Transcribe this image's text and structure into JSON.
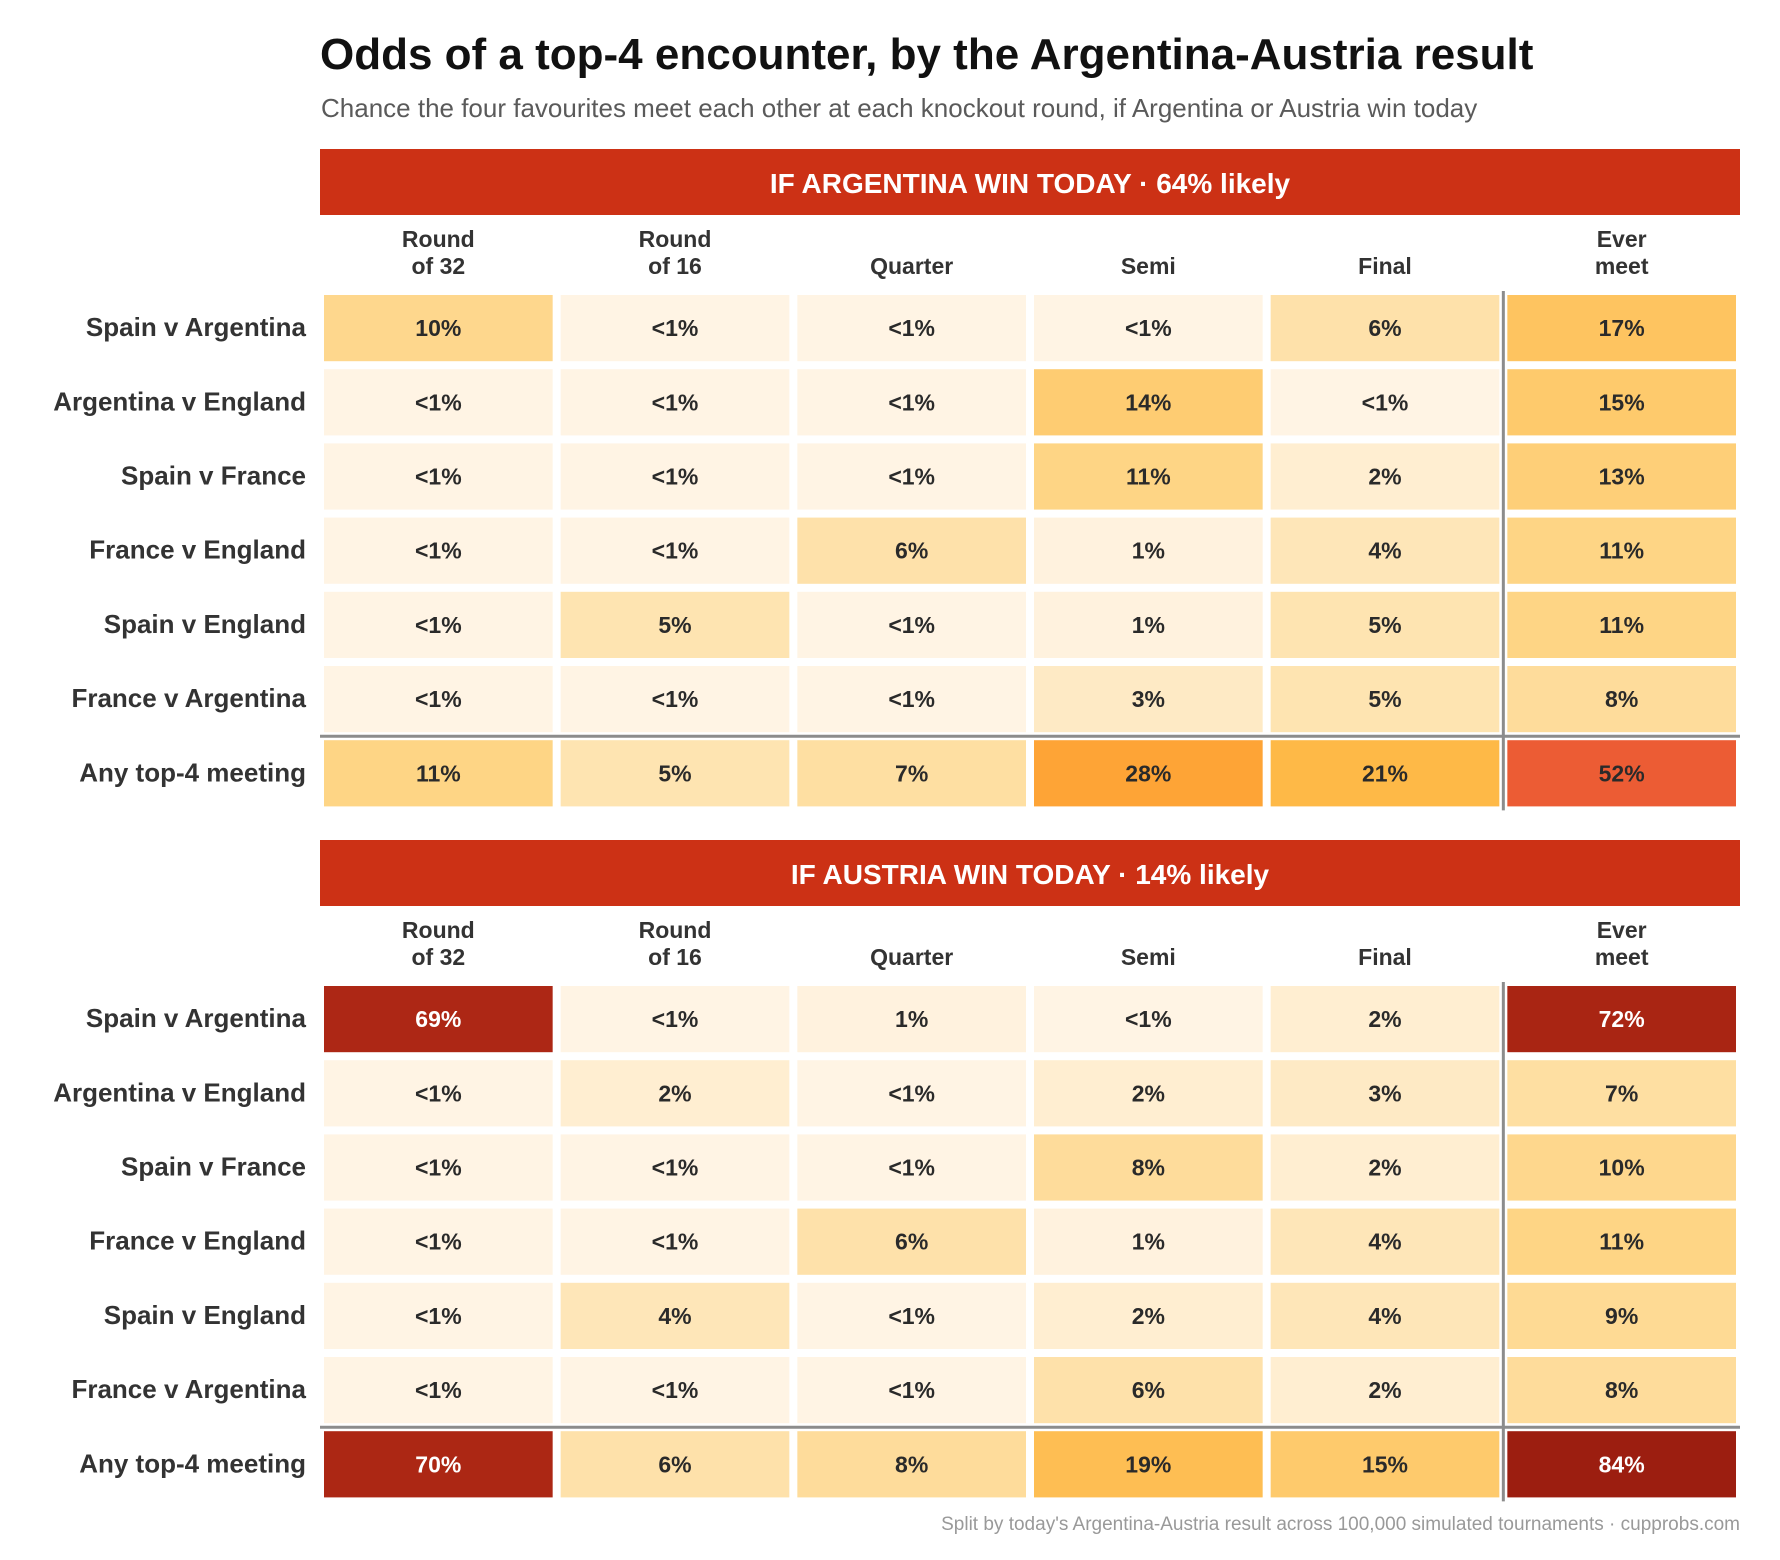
{
  "title": "Odds of a top-4 encounter, by the Argentina-Austria result",
  "subtitle": "Chance the four favourites meet each other at each knockout round, if Argentina or Austria win today",
  "footer": "Split by today's Argentina-Austria result across 100,000 simulated tournaments · cupprobs.com",
  "colors": {
    "banner": "#cc3115",
    "scale": [
      "#fff6ea",
      "#fee6b8",
      "#fed27e",
      "#feb035",
      "#fd6a3c",
      "#b22a16",
      "#9c1e10"
    ],
    "divider": "#8c8c8c"
  },
  "chart_data": [
    {
      "type": "heatmap",
      "panel_title": "IF ARGENTINA WIN TODAY  ·  64% likely",
      "columns": [
        "Round\nof 32",
        "Round\nof 16",
        "Quarter",
        "Semi",
        "Final",
        "Ever\nmeet"
      ],
      "rows": [
        "Spain v Argentina",
        "Argentina v England",
        "Spain v France",
        "France v England",
        "Spain v England",
        "France v Argentina",
        "Any top-4 meeting"
      ],
      "labels": [
        [
          "10%",
          "<1%",
          "<1%",
          "<1%",
          "6%",
          "17%"
        ],
        [
          "<1%",
          "<1%",
          "<1%",
          "14%",
          "<1%",
          "15%"
        ],
        [
          "<1%",
          "<1%",
          "<1%",
          "11%",
          "2%",
          "13%"
        ],
        [
          "<1%",
          "<1%",
          "6%",
          "1%",
          "4%",
          "11%"
        ],
        [
          "<1%",
          "5%",
          "<1%",
          "1%",
          "5%",
          "11%"
        ],
        [
          "<1%",
          "<1%",
          "<1%",
          "3%",
          "5%",
          "8%"
        ],
        [
          "11%",
          "5%",
          "7%",
          "28%",
          "21%",
          "52%"
        ]
      ],
      "values": [
        [
          10,
          0.5,
          0.5,
          0.5,
          6,
          17
        ],
        [
          0.5,
          0.5,
          0.5,
          14,
          0.5,
          15
        ],
        [
          0.5,
          0.5,
          0.5,
          11,
          2,
          13
        ],
        [
          0.5,
          0.5,
          6,
          1,
          4,
          11
        ],
        [
          0.5,
          5,
          0.5,
          1,
          5,
          11
        ],
        [
          0.5,
          0.5,
          0.5,
          3,
          5,
          8
        ],
        [
          11,
          5,
          7,
          28,
          21,
          52
        ]
      ]
    },
    {
      "type": "heatmap",
      "panel_title": "IF AUSTRIA WIN TODAY  ·  14% likely",
      "columns": [
        "Round\nof 32",
        "Round\nof 16",
        "Quarter",
        "Semi",
        "Final",
        "Ever\nmeet"
      ],
      "rows": [
        "Spain v Argentina",
        "Argentina v England",
        "Spain v France",
        "France v England",
        "Spain v England",
        "France v Argentina",
        "Any top-4 meeting"
      ],
      "labels": [
        [
          "69%",
          "<1%",
          "1%",
          "<1%",
          "2%",
          "72%"
        ],
        [
          "<1%",
          "2%",
          "<1%",
          "2%",
          "3%",
          "7%"
        ],
        [
          "<1%",
          "<1%",
          "<1%",
          "8%",
          "2%",
          "10%"
        ],
        [
          "<1%",
          "<1%",
          "6%",
          "1%",
          "4%",
          "11%"
        ],
        [
          "<1%",
          "4%",
          "<1%",
          "2%",
          "4%",
          "9%"
        ],
        [
          "<1%",
          "<1%",
          "<1%",
          "6%",
          "2%",
          "8%"
        ],
        [
          "70%",
          "6%",
          "8%",
          "19%",
          "15%",
          "84%"
        ]
      ],
      "values": [
        [
          69,
          0.5,
          1,
          0.5,
          2,
          72
        ],
        [
          0.5,
          2,
          0.5,
          2,
          3,
          7
        ],
        [
          0.5,
          0.5,
          0.5,
          8,
          2,
          10
        ],
        [
          0.5,
          0.5,
          6,
          1,
          4,
          11
        ],
        [
          0.5,
          4,
          0.5,
          2,
          4,
          9
        ],
        [
          0.5,
          0.5,
          0.5,
          6,
          2,
          8
        ],
        [
          70,
          6,
          8,
          19,
          15,
          84
        ]
      ]
    }
  ]
}
